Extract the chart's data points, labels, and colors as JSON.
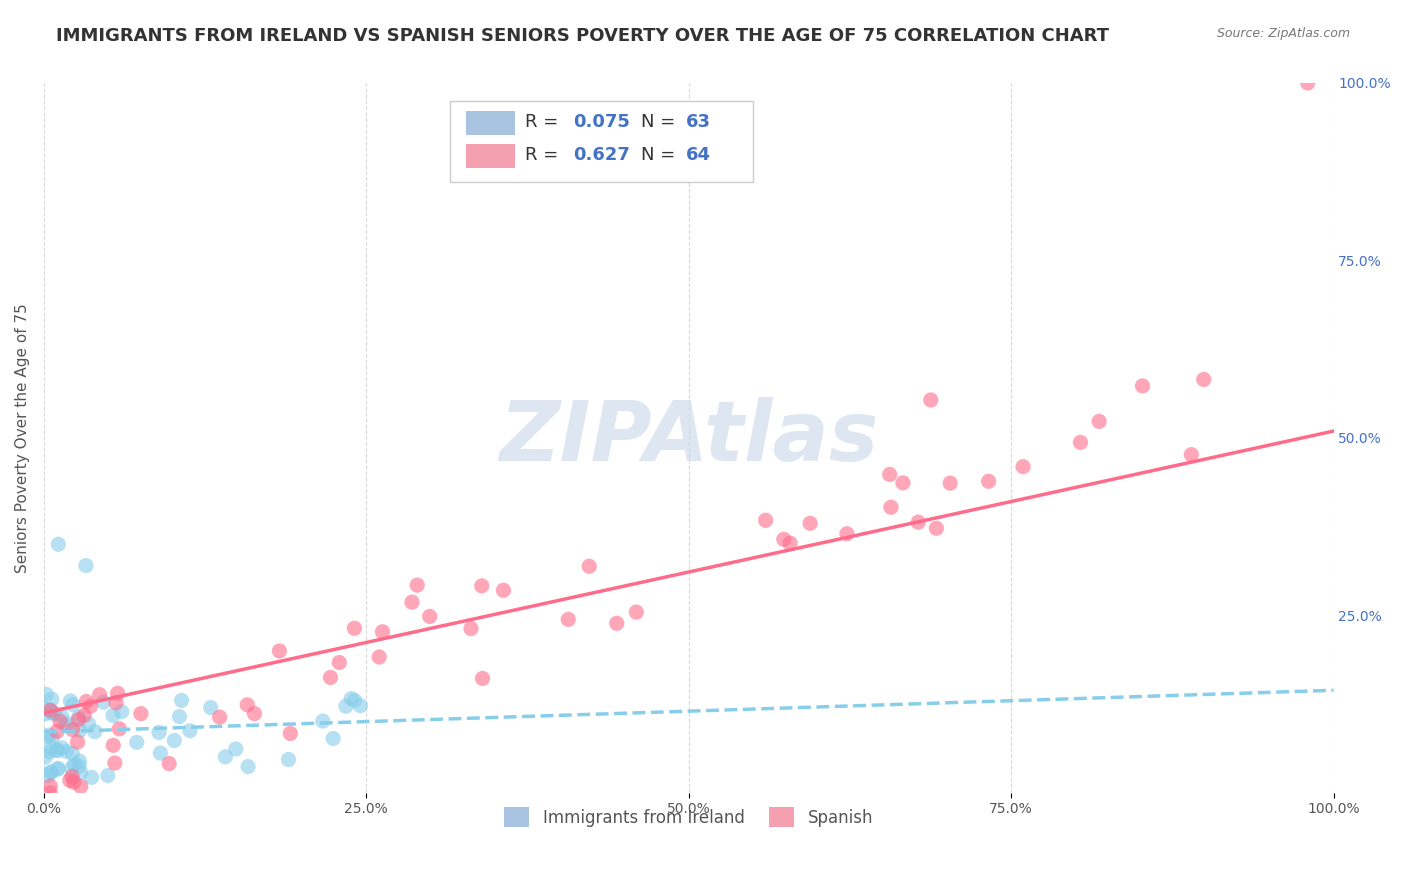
{
  "title": "IMMIGRANTS FROM IRELAND VS SPANISH SENIORS POVERTY OVER THE AGE OF 75 CORRELATION CHART",
  "source": "Source: ZipAtlas.com",
  "xlabel": "",
  "ylabel": "Seniors Poverty Over the Age of 75",
  "watermark": "ZIPAtlas",
  "xlim": [
    0,
    100
  ],
  "ylim": [
    0,
    100
  ],
  "x_ticks": [
    0,
    25,
    50,
    75,
    100
  ],
  "x_tick_labels": [
    "0.0%",
    "25.0%",
    "50.0%",
    "75.0%",
    "100.0%"
  ],
  "y_ticks_right": [
    25,
    50,
    75,
    100
  ],
  "y_tick_labels_right": [
    "25.0%",
    "50.0%",
    "75.0%",
    "100.0%"
  ],
  "ireland_color": "#87CEEB",
  "spanish_color": "#FF6B8A",
  "ireland_legend_color": "#a8c4e0",
  "spanish_legend_color": "#f5a0b0",
  "ireland_R": "0.075",
  "ireland_N": "63",
  "spanish_R": "0.627",
  "spanish_N": "64",
  "background_color": "#ffffff",
  "grid_color": "#d0d0d0",
  "title_fontsize": 13,
  "label_fontsize": 11,
  "tick_fontsize": 10,
  "watermark_color": "#c8d8e8",
  "watermark_fontsize": 60
}
